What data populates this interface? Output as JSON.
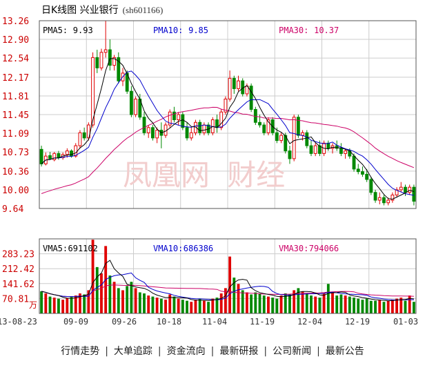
{
  "header": {
    "title": "日K线图 兴业银行",
    "code": "(sh601166)"
  },
  "footer": {
    "links": [
      "行情走势",
      "大单追踪",
      "资金流向",
      "最新研报",
      "公司新闻",
      "最新公告"
    ],
    "separator": "|"
  },
  "colors": {
    "up": "#e00000",
    "down": "#008800",
    "ma5": "#000000",
    "ma10": "#0000cc",
    "ma30": "#cc0066",
    "grid": "#cccccc",
    "border": "#555555"
  },
  "watermark": "凤凰网 财经",
  "chart_data": [
    {
      "type": "candlestick",
      "name": "price",
      "ylim": [
        9.64,
        13.26
      ],
      "yticks": [
        13.26,
        12.9,
        12.54,
        12.17,
        11.81,
        11.45,
        11.09,
        10.73,
        10.36,
        10.0,
        9.64
      ],
      "ytick_labels": [
        "13.26",
        "12.90",
        "12.54",
        "12.17",
        "11.81",
        "11.45",
        "11.09",
        "10.73",
        "10.36",
        "10.00",
        "9.64"
      ],
      "x_tick_labels": [
        "13-08-23",
        "09-09",
        "09-26",
        "10-18",
        "11-04",
        "11-19",
        "12-04",
        "12-19",
        "01-03"
      ],
      "legend": [
        {
          "label": "PMA5",
          "value": "9.93"
        },
        {
          "label": "PMA10",
          "value": "9.85"
        },
        {
          "label": "PMA30",
          "value": "10.37"
        }
      ],
      "ohlc": [
        [
          10.78,
          10.85,
          10.45,
          10.5
        ],
        [
          10.5,
          10.72,
          10.47,
          10.65
        ],
        [
          10.66,
          10.73,
          10.58,
          10.6
        ],
        [
          10.58,
          10.73,
          10.55,
          10.7
        ],
        [
          10.7,
          10.75,
          10.58,
          10.62
        ],
        [
          10.62,
          10.72,
          10.58,
          10.68
        ],
        [
          10.68,
          10.8,
          10.62,
          10.75
        ],
        [
          10.75,
          10.78,
          10.62,
          10.65
        ],
        [
          10.65,
          10.9,
          10.62,
          10.85
        ],
        [
          10.85,
          11.15,
          10.8,
          11.1
        ],
        [
          11.1,
          11.2,
          10.95,
          11.0
        ],
        [
          11.0,
          11.3,
          10.95,
          11.25
        ],
        [
          11.25,
          12.65,
          11.2,
          12.55
        ],
        [
          12.55,
          12.7,
          12.25,
          12.35
        ],
        [
          12.35,
          12.72,
          12.3,
          12.65
        ],
        [
          12.65,
          13.26,
          12.55,
          12.7
        ],
        [
          12.7,
          12.9,
          12.3,
          12.4
        ],
        [
          12.4,
          12.6,
          12.3,
          12.55
        ],
        [
          12.55,
          12.65,
          12.05,
          12.1
        ],
        [
          12.1,
          12.35,
          12.0,
          12.25
        ],
        [
          12.25,
          12.3,
          11.85,
          11.9
        ],
        [
          11.9,
          12.0,
          11.4,
          11.45
        ],
        [
          11.45,
          11.8,
          11.4,
          11.75
        ],
        [
          11.75,
          11.85,
          11.35,
          11.4
        ],
        [
          11.4,
          11.5,
          11.05,
          11.1
        ],
        [
          11.1,
          11.25,
          11.0,
          11.2
        ],
        [
          11.2,
          11.25,
          10.95,
          11.0
        ],
        [
          11.0,
          11.2,
          10.9,
          11.15
        ],
        [
          11.15,
          11.3,
          10.8,
          11.05
        ],
        [
          11.05,
          11.3,
          11.0,
          11.25
        ],
        [
          11.25,
          11.55,
          11.2,
          11.5
        ],
        [
          11.5,
          11.6,
          11.3,
          11.35
        ],
        [
          11.35,
          11.5,
          11.25,
          11.45
        ],
        [
          11.45,
          11.5,
          11.15,
          11.2
        ],
        [
          11.2,
          11.3,
          10.95,
          11.0
        ],
        [
          11.0,
          11.2,
          10.95,
          11.1
        ],
        [
          11.1,
          11.35,
          11.05,
          11.3
        ],
        [
          11.3,
          11.35,
          11.05,
          11.1
        ],
        [
          11.1,
          11.3,
          11.05,
          11.25
        ],
        [
          11.25,
          11.3,
          11.05,
          11.1
        ],
        [
          11.1,
          11.4,
          11.05,
          11.35
        ],
        [
          11.35,
          11.45,
          11.1,
          11.2
        ],
        [
          11.2,
          11.55,
          11.15,
          11.5
        ],
        [
          11.5,
          11.8,
          11.45,
          11.75
        ],
        [
          11.75,
          12.3,
          11.7,
          12.15
        ],
        [
          12.15,
          12.2,
          11.85,
          11.95
        ],
        [
          11.95,
          12.2,
          11.9,
          12.1
        ],
        [
          12.1,
          12.15,
          11.8,
          11.85
        ],
        [
          11.85,
          12.05,
          11.8,
          12.0
        ],
        [
          12.0,
          12.05,
          11.5,
          11.55
        ],
        [
          11.55,
          11.6,
          11.25,
          11.3
        ],
        [
          11.3,
          11.45,
          11.2,
          11.25
        ],
        [
          11.25,
          11.3,
          11.05,
          11.1
        ],
        [
          11.1,
          11.4,
          11.05,
          11.35
        ],
        [
          11.35,
          11.4,
          11.05,
          11.1
        ],
        [
          11.1,
          11.2,
          10.9,
          10.95
        ],
        [
          10.95,
          11.1,
          10.9,
          11.05
        ],
        [
          11.05,
          11.1,
          10.7,
          10.75
        ],
        [
          10.75,
          10.85,
          10.5,
          10.6
        ],
        [
          10.6,
          11.45,
          10.55,
          11.4
        ],
        [
          11.4,
          11.45,
          11.0,
          11.05
        ],
        [
          11.05,
          11.15,
          10.95,
          11.1
        ],
        [
          11.1,
          11.15,
          10.8,
          10.85
        ],
        [
          10.85,
          10.95,
          10.65,
          10.7
        ],
        [
          10.7,
          10.9,
          10.65,
          10.85
        ],
        [
          10.85,
          10.95,
          10.65,
          10.7
        ],
        [
          10.7,
          10.95,
          10.65,
          10.9
        ],
        [
          10.9,
          10.95,
          10.75,
          10.8
        ],
        [
          10.8,
          10.9,
          10.7,
          10.85
        ],
        [
          10.85,
          10.95,
          10.75,
          10.8
        ],
        [
          10.8,
          10.9,
          10.65,
          10.7
        ],
        [
          10.7,
          10.8,
          10.6,
          10.75
        ],
        [
          10.75,
          10.8,
          10.6,
          10.65
        ],
        [
          10.65,
          10.7,
          10.35,
          10.4
        ],
        [
          10.4,
          10.5,
          10.3,
          10.35
        ],
        [
          10.35,
          10.45,
          10.25,
          10.3
        ],
        [
          10.3,
          10.4,
          10.15,
          10.2
        ],
        [
          10.2,
          10.25,
          9.9,
          9.95
        ],
        [
          9.95,
          10.0,
          9.75,
          9.8
        ],
        [
          9.8,
          9.95,
          9.72,
          9.85
        ],
        [
          9.85,
          9.9,
          9.7,
          9.75
        ],
        [
          9.75,
          9.85,
          9.7,
          9.8
        ],
        [
          9.8,
          9.95,
          9.75,
          9.9
        ],
        [
          9.9,
          10.05,
          9.85,
          10.0
        ],
        [
          10.0,
          10.15,
          9.95,
          10.05
        ],
        [
          10.05,
          10.1,
          9.88,
          9.95
        ],
        [
          9.95,
          10.1,
          9.9,
          10.05
        ],
        [
          10.05,
          10.1,
          9.7,
          9.78
        ]
      ]
    },
    {
      "type": "bar",
      "name": "volume",
      "ylim": [
        0,
        354000
      ],
      "yticks": [
        283230,
        212420,
        141620,
        70810
      ],
      "ytick_labels": [
        "283.23",
        "212.42",
        "141.62",
        "70.81"
      ],
      "unit_label": "万",
      "legend": [
        {
          "label": "VMA5",
          "value": "691102"
        },
        {
          "label": "VMA10",
          "value": "686386"
        },
        {
          "label": "VMA30",
          "value": "794066"
        }
      ],
      "values": [
        105000,
        95000,
        80000,
        75000,
        70000,
        65000,
        72000,
        78000,
        85000,
        95000,
        90000,
        110000,
        350000,
        220000,
        190000,
        320000,
        180000,
        150000,
        120000,
        110000,
        130000,
        150000,
        120000,
        100000,
        95000,
        85000,
        80000,
        75000,
        70000,
        65000,
        90000,
        80000,
        70000,
        65000,
        60000,
        55000,
        65000,
        70000,
        60000,
        55000,
        70000,
        75000,
        95000,
        120000,
        270000,
        170000,
        140000,
        110000,
        100000,
        90000,
        100000,
        95000,
        85000,
        80000,
        75000,
        70000,
        85000,
        95000,
        90000,
        110000,
        120000,
        105000,
        95000,
        85000,
        80000,
        75000,
        95000,
        140000,
        100000,
        85000,
        90000,
        85000,
        80000,
        75000,
        70000,
        65000,
        70000,
        60000,
        60000,
        65000,
        55000,
        60000,
        65000,
        70000,
        75000,
        60000,
        85000,
        55000
      ],
      "direction": [
        "d",
        "u",
        "d",
        "u",
        "d",
        "u",
        "u",
        "d",
        "u",
        "u",
        "d",
        "u",
        "u",
        "d",
        "u",
        "u",
        "d",
        "u",
        "d",
        "u",
        "d",
        "d",
        "u",
        "d",
        "d",
        "u",
        "d",
        "u",
        "d",
        "u",
        "u",
        "d",
        "u",
        "d",
        "d",
        "u",
        "u",
        "d",
        "u",
        "d",
        "u",
        "d",
        "u",
        "u",
        "u",
        "d",
        "u",
        "d",
        "u",
        "d",
        "d",
        "d",
        "d",
        "u",
        "d",
        "d",
        "u",
        "d",
        "d",
        "u",
        "d",
        "u",
        "d",
        "d",
        "u",
        "d",
        "u",
        "d",
        "u",
        "d",
        "d",
        "u",
        "d",
        "d",
        "d",
        "d",
        "d",
        "d",
        "d",
        "u",
        "d",
        "u",
        "u",
        "u",
        "u",
        "d",
        "u",
        "d"
      ]
    }
  ]
}
